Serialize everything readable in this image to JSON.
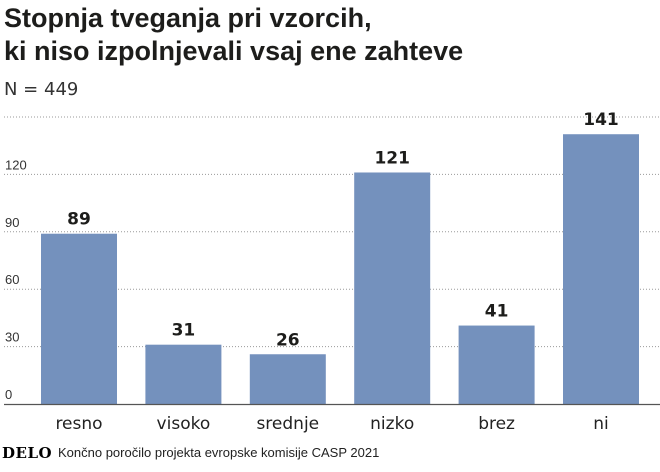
{
  "header": {
    "title_line1": "Stopnja tveganja pri vzorcih,",
    "title_line2": "ki niso izpolnjevali vsaj ene zahteve",
    "subtitle": "N = 449"
  },
  "chart_data": {
    "type": "bar",
    "categories": [
      "resno",
      "visoko",
      "srednje",
      "nizko",
      "brez",
      "ni"
    ],
    "values": [
      89,
      31,
      26,
      121,
      41,
      141
    ],
    "y_ticks": [
      0,
      30,
      60,
      90,
      120
    ],
    "ylim": [
      0,
      150
    ],
    "grid": true,
    "bar_color": "#7491bd",
    "title": "",
    "xlabel": "",
    "ylabel": ""
  },
  "footer": {
    "logo": "DELO",
    "source": "Končno poročilo projekta evropske komisije CASP 2021"
  }
}
